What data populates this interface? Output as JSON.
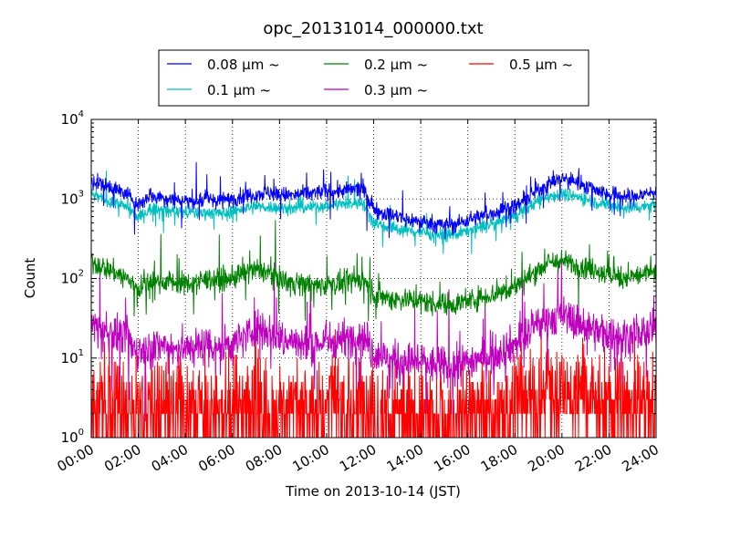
{
  "chart_data": {
    "type": "line",
    "title": "opc_20131014_000000.txt",
    "xlabel": "Time on 2013-10-14 (JST)",
    "ylabel": "Count",
    "y_scale": "log",
    "ylim": [
      1,
      10000
    ],
    "xlim_hours": [
      0,
      24
    ],
    "x_ticks": [
      "00:00",
      "02:00",
      "04:00",
      "06:00",
      "08:00",
      "10:00",
      "12:00",
      "14:00",
      "16:00",
      "18:00",
      "20:00",
      "22:00",
      "24:00"
    ],
    "y_ticks": [
      {
        "base": "10",
        "exp": "0"
      },
      {
        "base": "10",
        "exp": "1"
      },
      {
        "base": "10",
        "exp": "2"
      },
      {
        "base": "10",
        "exp": "3"
      },
      {
        "base": "10",
        "exp": "4"
      }
    ],
    "grid": true,
    "legend_position": "top",
    "hours": [
      0,
      0.5,
      1,
      1.5,
      2,
      2.5,
      3,
      3.5,
      4,
      4.5,
      5,
      5.5,
      6,
      6.5,
      7,
      7.5,
      8,
      8.5,
      9,
      9.5,
      10,
      10.5,
      11,
      11.5,
      12,
      12.5,
      13,
      13.5,
      14,
      14.5,
      15,
      15.5,
      16,
      16.5,
      17,
      17.5,
      18,
      18.5,
      19,
      19.5,
      20,
      20.5,
      21,
      21.5,
      22,
      22.5,
      23,
      23.5,
      24
    ],
    "series": [
      {
        "name": "0.08 μm ~",
        "color": "#0000ff",
        "noise": 0.05,
        "values": [
          1700,
          1500,
          1350,
          1150,
          850,
          1100,
          1050,
          1000,
          950,
          950,
          1000,
          950,
          1000,
          1100,
          1150,
          1200,
          1150,
          1100,
          1150,
          1200,
          1250,
          1250,
          1300,
          1400,
          750,
          650,
          600,
          550,
          520,
          500,
          470,
          480,
          550,
          600,
          650,
          750,
          800,
          1000,
          1300,
          1600,
          1800,
          1700,
          1500,
          1300,
          1150,
          1100,
          1050,
          1150,
          1250
        ]
      },
      {
        "name": "0.1 μm ~",
        "color": "#00bfbf",
        "noise": 0.04,
        "values": [
          1150,
          1000,
          900,
          800,
          580,
          750,
          720,
          700,
          680,
          660,
          680,
          650,
          700,
          750,
          780,
          800,
          770,
          750,
          780,
          800,
          830,
          850,
          870,
          930,
          530,
          450,
          420,
          400,
          380,
          370,
          350,
          360,
          400,
          440,
          470,
          550,
          600,
          750,
          950,
          1100,
          1150,
          1100,
          1000,
          900,
          830,
          780,
          760,
          820,
          860
        ]
      },
      {
        "name": "0.2 μm ~",
        "color": "#008000",
        "noise": 0.07,
        "values": [
          160,
          140,
          120,
          100,
          75,
          90,
          95,
          90,
          85,
          90,
          100,
          95,
          100,
          115,
          130,
          120,
          100,
          90,
          85,
          80,
          85,
          85,
          90,
          100,
          65,
          58,
          55,
          55,
          52,
          50,
          48,
          48,
          52,
          58,
          62,
          70,
          80,
          100,
          130,
          160,
          165,
          150,
          140,
          125,
          110,
          105,
          105,
          115,
          120
        ]
      },
      {
        "name": "0.3 μm ~",
        "color": "#bf00bf",
        "noise": 0.12,
        "values": [
          28,
          22,
          20,
          17,
          12,
          14,
          14,
          13,
          13,
          14,
          15,
          14,
          15,
          18,
          25,
          22,
          18,
          16,
          15,
          15,
          16,
          17,
          18,
          20,
          12,
          10,
          9,
          9,
          9,
          8,
          8,
          8,
          9,
          10,
          11,
          13,
          15,
          20,
          26,
          32,
          34,
          30,
          26,
          22,
          20,
          19,
          19,
          21,
          22
        ]
      },
      {
        "name": "0.5 μm ~",
        "color": "#ff0000",
        "noise": 0.2,
        "values": [
          3,
          2.5,
          2.5,
          2.2,
          2,
          2,
          2,
          2,
          2,
          2,
          2,
          2,
          2.2,
          2.3,
          2.5,
          2.3,
          2.2,
          2.2,
          2.2,
          2.2,
          2.2,
          2.2,
          2.3,
          2.5,
          2,
          1.8,
          1.8,
          1.8,
          1.8,
          1.8,
          1.7,
          1.7,
          1.8,
          1.9,
          2,
          2.2,
          2.5,
          3,
          3.5,
          4,
          4,
          3.6,
          3.2,
          3,
          2.8,
          2.7,
          2.7,
          2.8,
          3
        ]
      }
    ]
  }
}
